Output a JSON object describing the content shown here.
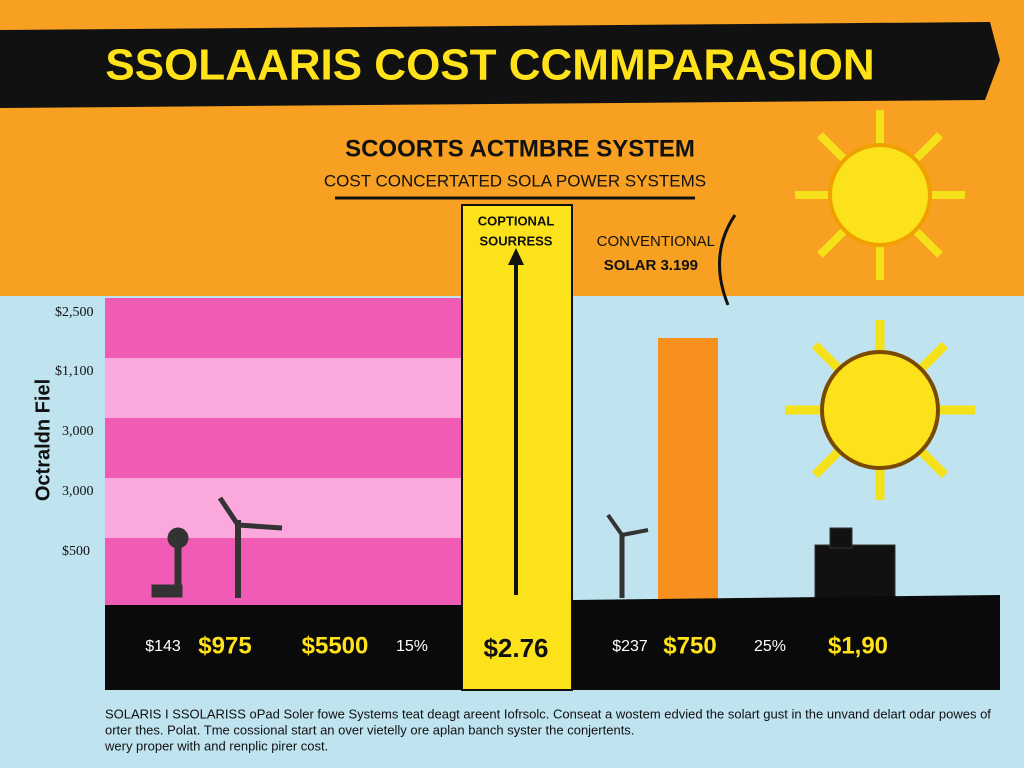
{
  "header": {
    "title": "SSOLAARIS COST CCMMPARASION",
    "subtitle": "SCOORTS ACTMBRE SYSTEM",
    "tagline": "COST CONCERTATED SOLA POWER SYSTEMS"
  },
  "axis": {
    "label": "Octraldn Fiel",
    "ticks": [
      "$2,500",
      "$1,100",
      "3,000",
      "3,000",
      "$500"
    ]
  },
  "callouts": {
    "center": [
      "COPTIONAL",
      "SOURRESS"
    ],
    "right": [
      "CONVENTIONAL",
      "SOLAR 3.199"
    ]
  },
  "values": [
    "$143",
    "$975",
    "$5500",
    "15%",
    "$2.76",
    "$237",
    "$750",
    "25%",
    "$1,90"
  ],
  "footer": [
    "SOLARIS I SSOLARISS oPad Soler fowe Systems teat deagt areent Iofrsolc. Conseat a wostem edvied the solart gust in the unvand delart odar powes of",
    "orter thes. Polat. Tme cossional start an over vietelly ore aplan banch syster the conjertents.",
    "wery proper with and renplic pirer cost."
  ]
}
